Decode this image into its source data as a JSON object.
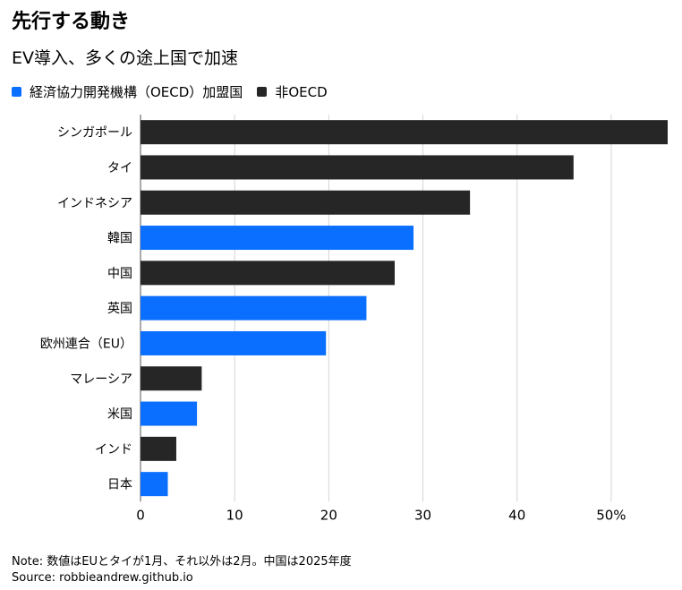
{
  "title": "先行する動き",
  "subtitle": "EV導入、多くの途上国で加速",
  "legend": {
    "oecd": "経済協力開発機構（OECD）加盟国",
    "non_oecd": "非OECD"
  },
  "colors": {
    "oecd": "#0a6fff",
    "non_oecd": "#262626",
    "grid": "#d4d4d4"
  },
  "note": "Note: 数値はEUとタイが1月、それ以外は2月。中国は2025年度",
  "source": "Source: robbieandrew.github.io",
  "chart_data": {
    "type": "bar",
    "orientation": "horizontal",
    "title": "先行する動き",
    "subtitle": "EV導入、多くの途上国で加速",
    "xlabel": "",
    "ylabel": "",
    "xlim": [
      0,
      56
    ],
    "xticks": [
      0,
      10,
      20,
      30,
      40,
      50
    ],
    "xtick_labels": [
      "0",
      "10",
      "20",
      "30",
      "40",
      "50%"
    ],
    "grid": true,
    "categories": [
      "シンガポール",
      "タイ",
      "インドネシア",
      "韓国",
      "中国",
      "英国",
      "欧州連合（EU）",
      "マレーシア",
      "米国",
      "インド",
      "日本"
    ],
    "values": [
      56,
      46,
      35,
      29,
      27,
      24,
      19.7,
      6.5,
      6,
      3.8,
      2.9
    ],
    "groups": [
      "non_oecd",
      "non_oecd",
      "non_oecd",
      "oecd",
      "non_oecd",
      "oecd",
      "oecd",
      "non_oecd",
      "oecd",
      "non_oecd",
      "oecd"
    ]
  }
}
